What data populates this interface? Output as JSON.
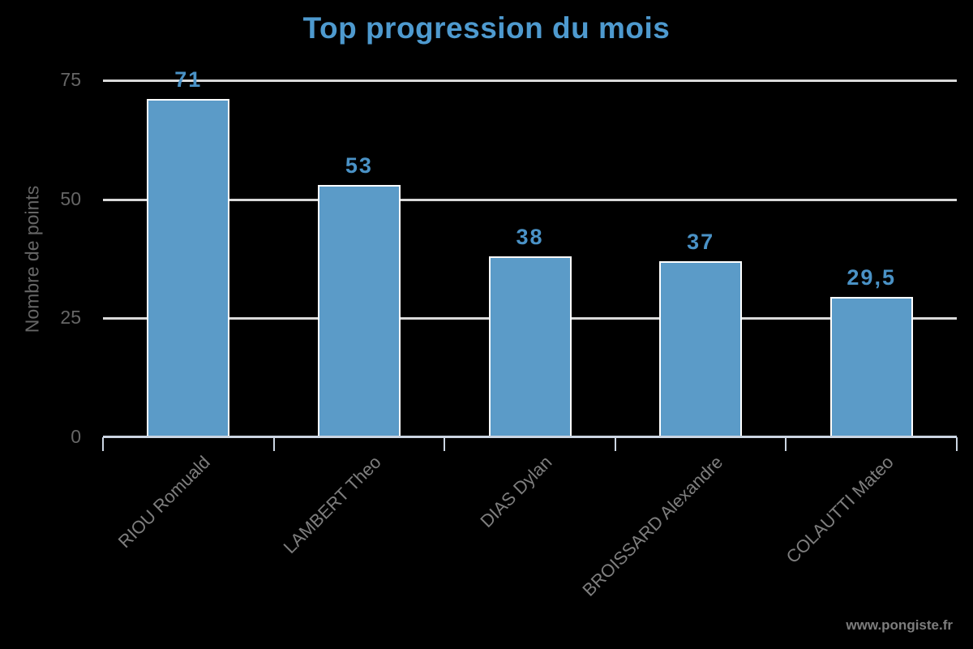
{
  "chart_data": {
    "type": "bar",
    "title": "Top progression du mois",
    "ylabel": "Nombre de points",
    "xlabel": "",
    "categories": [
      "RIOU Romuald",
      "LAMBERT Theo",
      "DIAS Dylan",
      "BROISSARD Alexandre",
      "COLAUTTI Mateo"
    ],
    "values": [
      71,
      53,
      38,
      37,
      29.5
    ],
    "value_labels": [
      "71",
      "53",
      "38",
      "37",
      "29,5"
    ],
    "yticks": [
      0,
      25,
      50,
      75
    ],
    "ylim": [
      0,
      75
    ],
    "grid": "horizontal-gridlines-only",
    "legend_position": "none",
    "colors": {
      "background": "#000000",
      "bar_fill": "#5B9BC8",
      "bar_border": "#FFFFFF",
      "value_label": "#4A92C6",
      "title": "#4E9ACF",
      "grid_line": "#D9D9D9",
      "axis_line": "#CBD5E2",
      "y_tick_label": "#666666",
      "x_tick_label": "#7E7E7E",
      "axis_title": "#666666",
      "watermark": "#7D7D7D"
    }
  },
  "footer": {
    "watermark": "www.pongiste.fr"
  }
}
